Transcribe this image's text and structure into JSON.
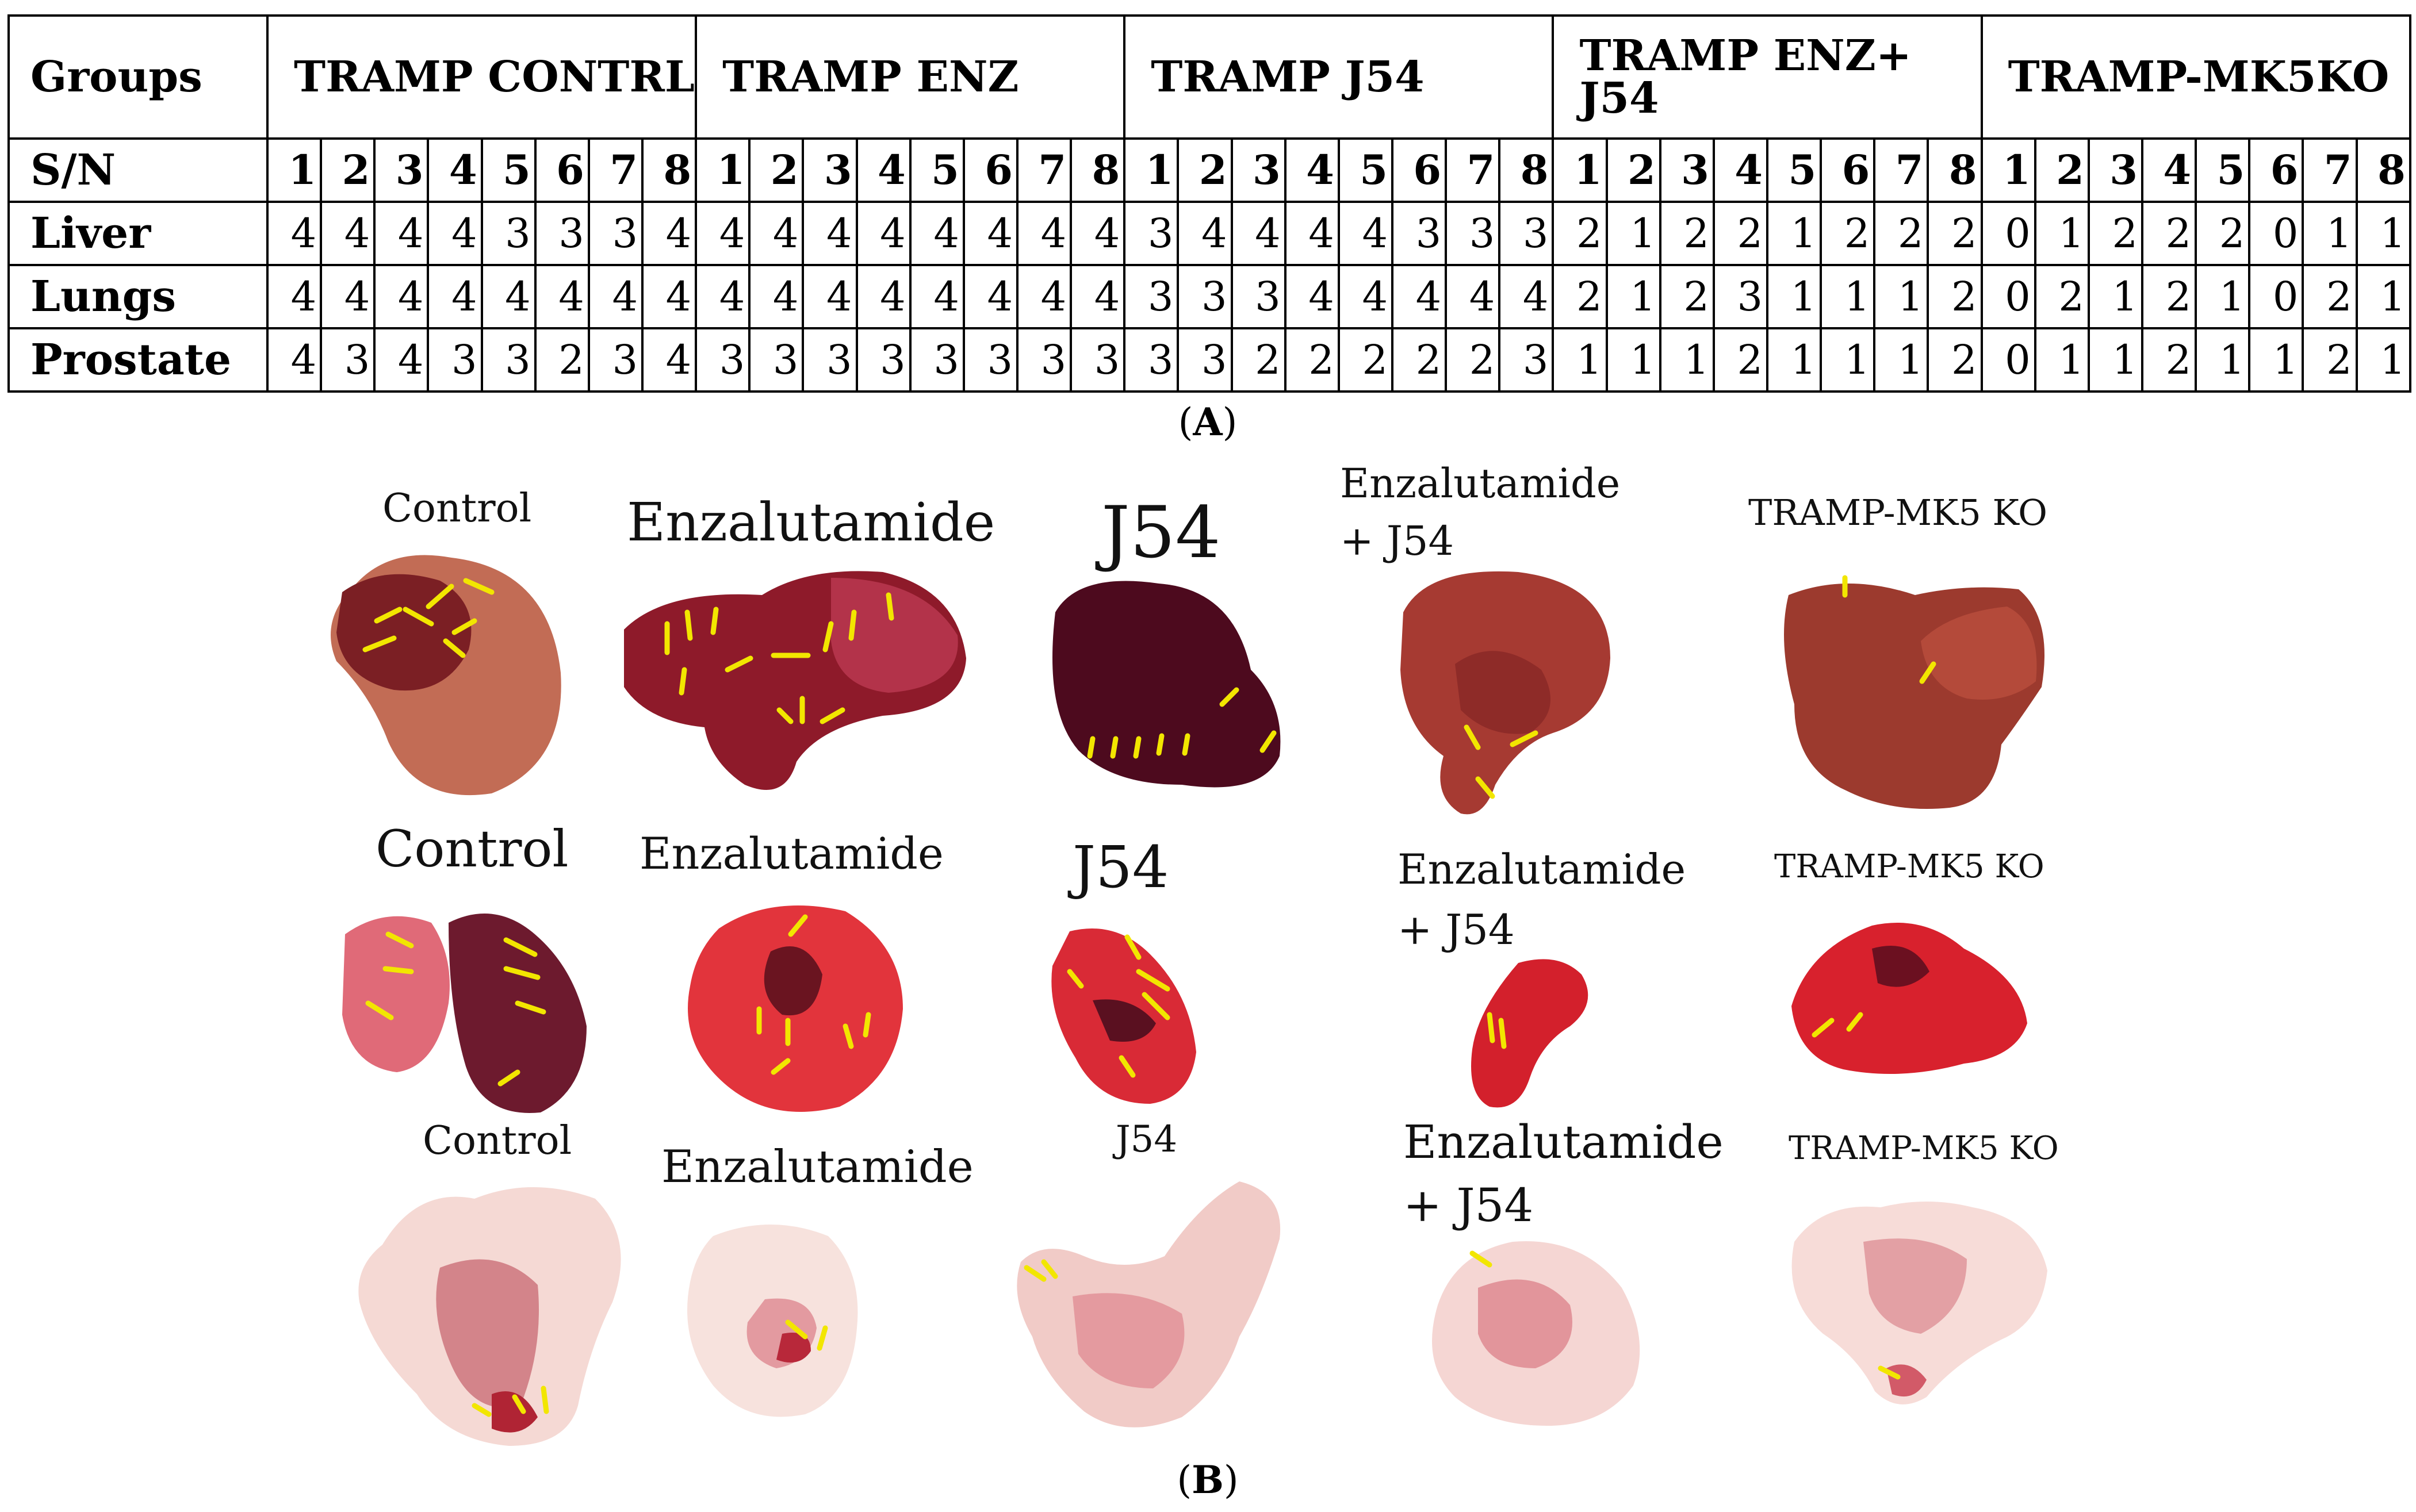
{
  "table": {
    "row_labels": {
      "groups": "Groups",
      "sn": "S/N",
      "liver": "Liver",
      "lungs": "Lungs",
      "prostate": "Prostate"
    },
    "groups": [
      "TRAMP CONTRL",
      "TRAMP ENZ",
      "TRAMP J54",
      "TRAMP ENZ+ J54",
      "TRAMP-MK5KO"
    ],
    "sample_numbers": [
      "1",
      "2",
      "3",
      "4",
      "5",
      "6",
      "7",
      "8"
    ],
    "liver": [
      [
        "4",
        "4",
        "4",
        "4",
        "3",
        "3",
        "3",
        "4"
      ],
      [
        "4",
        "4",
        "4",
        "4",
        "4",
        "4",
        "4",
        "4"
      ],
      [
        "3",
        "4",
        "4",
        "4",
        "4",
        "3",
        "3",
        "3"
      ],
      [
        "2",
        "1",
        "2",
        "2",
        "1",
        "2",
        "2",
        "2"
      ],
      [
        "0",
        "1",
        "2",
        "2",
        "2",
        "0",
        "1",
        "1"
      ]
    ],
    "lungs": [
      [
        "4",
        "4",
        "4",
        "4",
        "4",
        "4",
        "4",
        "4"
      ],
      [
        "4",
        "4",
        "4",
        "4",
        "4",
        "4",
        "4",
        "4"
      ],
      [
        "3",
        "3",
        "3",
        "4",
        "4",
        "4",
        "4",
        "4"
      ],
      [
        "2",
        "1",
        "2",
        "3",
        "1",
        "1",
        "1",
        "2"
      ],
      [
        "0",
        "2",
        "1",
        "2",
        "1",
        "0",
        "2",
        "1"
      ]
    ],
    "prostate": [
      [
        "4",
        "3",
        "4",
        "3",
        "3",
        "2",
        "3",
        "4"
      ],
      [
        "3",
        "3",
        "3",
        "3",
        "3",
        "3",
        "3",
        "3"
      ],
      [
        "3",
        "3",
        "2",
        "2",
        "2",
        "2",
        "2",
        "3"
      ],
      [
        "1",
        "1",
        "1",
        "2",
        "1",
        "1",
        "1",
        "2"
      ],
      [
        "0",
        "1",
        "1",
        "2",
        "1",
        "1",
        "2",
        "1"
      ]
    ]
  },
  "captions": {
    "a_open": "(",
    "a_letter": "A",
    "a_close": ")",
    "b_open": "(",
    "b_letter": "B",
    "b_close": ")"
  },
  "figure": {
    "liver_row": {
      "control": "Control",
      "enz": "Enzalutamide",
      "j54": "J54",
      "combo_line1": "Enzalutamide",
      "combo_line2": "+ J54",
      "mk5": "TRAMP-MK5 KO"
    },
    "lung_row": {
      "control": "Control",
      "enz": "Enzalutamide",
      "j54": "J54",
      "combo_line1": "Enzalutamide",
      "combo_line2": "+ J54",
      "mk5": "TRAMP-MK5 KO"
    },
    "prostate_row": {
      "control": "Control",
      "enz": "Enzalutamide",
      "j54": "J54",
      "combo_line1": "Enzalutamide",
      "combo_line2": "+ J54",
      "mk5": "TRAMP-MK5 KO"
    }
  },
  "colors": {
    "arrow": "#f2e600",
    "liver_light": "#b44a3a",
    "liver_dark": "#5a0c1c",
    "lung": "#e0242b",
    "prostate": "#f3d2cc"
  }
}
